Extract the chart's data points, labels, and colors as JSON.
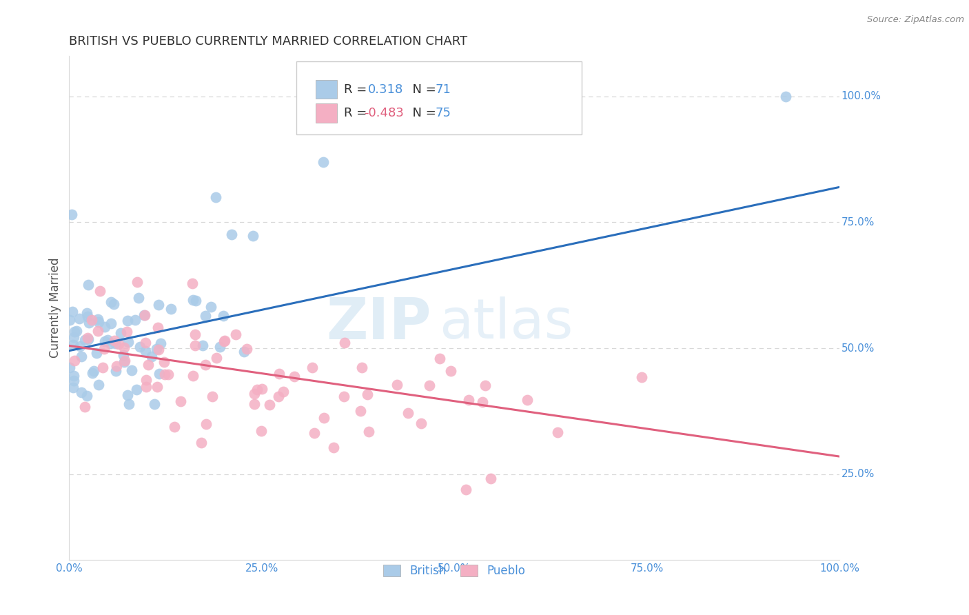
{
  "title": "BRITISH VS PUEBLO CURRENTLY MARRIED CORRELATION CHART",
  "source": "Source: ZipAtlas.com",
  "ylabel": "Currently Married",
  "r_british": 0.318,
  "n_british": 71,
  "r_pueblo": -0.483,
  "n_pueblo": 75,
  "blue_color": "#aacbe8",
  "pink_color": "#f4afc3",
  "blue_line_color": "#2a6ebb",
  "pink_line_color": "#e0607e",
  "title_color": "#333333",
  "axis_label_color": "#4a90d9",
  "legend_r_blue": "#4a90d9",
  "legend_r_pink": "#e0607e",
  "legend_n_color": "#4a90d9",
  "watermark_color": "#c8dff0",
  "grid_color": "#d8d8d8",
  "blue_trend_x0": 0.0,
  "blue_trend_y0": 0.495,
  "blue_trend_x1": 1.0,
  "blue_trend_y1": 0.82,
  "pink_trend_x0": 0.0,
  "pink_trend_y0": 0.505,
  "pink_trend_x1": 1.0,
  "pink_trend_y1": 0.285,
  "ymin": 0.08,
  "ymax": 1.08,
  "xmin": 0.0,
  "xmax": 1.0
}
